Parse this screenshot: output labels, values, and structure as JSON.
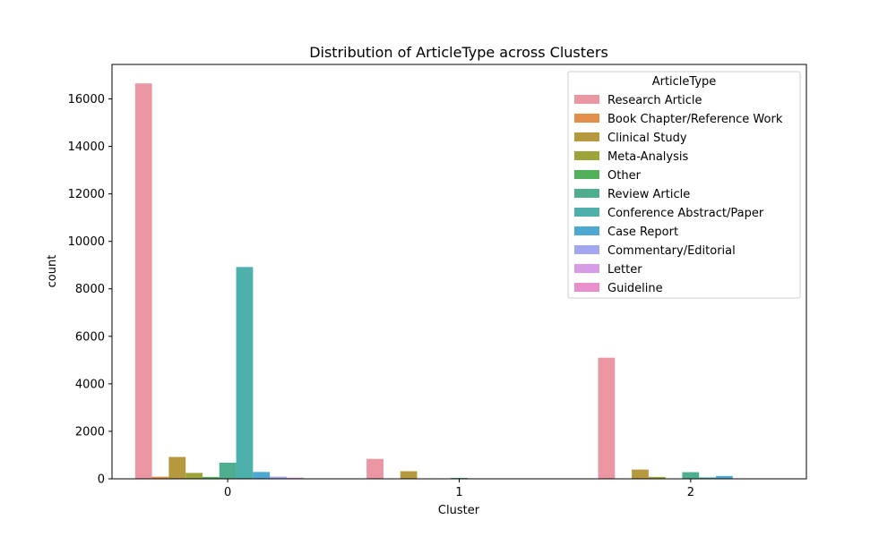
{
  "chart_data": {
    "type": "bar",
    "title": "Distribution of ArticleType across Clusters",
    "xlabel": "Cluster",
    "ylabel": "count",
    "categories": [
      "0",
      "1",
      "2"
    ],
    "ylim": [
      0,
      17450
    ],
    "yticks": [
      "0",
      "2000",
      "4000",
      "6000",
      "8000",
      "10000",
      "12000",
      "14000",
      "16000"
    ],
    "grid": false,
    "legend": {
      "title": "ArticleType",
      "placement": "top-right"
    },
    "series": [
      {
        "name": "Research Article",
        "color": "#ea96a3",
        "values": [
          16650,
          840,
          5100
        ]
      },
      {
        "name": "Book Chapter/Reference Work",
        "color": "#e38f49",
        "values": [
          90,
          0,
          0
        ]
      },
      {
        "name": "Clinical Study",
        "color": "#b6993e",
        "values": [
          920,
          320,
          390
        ]
      },
      {
        "name": "Meta-Analysis",
        "color": "#9da43a",
        "values": [
          250,
          10,
          80
        ]
      },
      {
        "name": "Other",
        "color": "#52b05b",
        "values": [
          80,
          5,
          10
        ]
      },
      {
        "name": "Review Article",
        "color": "#4eae8f",
        "values": [
          680,
          40,
          280
        ]
      },
      {
        "name": "Conference Abstract/Paper",
        "color": "#4eb0aa",
        "values": [
          8920,
          15,
          60
        ]
      },
      {
        "name": "Case Report",
        "color": "#4ea9d2",
        "values": [
          290,
          5,
          120
        ]
      },
      {
        "name": "Commentary/Editorial",
        "color": "#a3a7ef",
        "values": [
          90,
          0,
          5
        ]
      },
      {
        "name": "Letter",
        "color": "#d89be6",
        "values": [
          50,
          0,
          0
        ]
      },
      {
        "name": "Guideline",
        "color": "#e98fcb",
        "values": [
          20,
          0,
          0
        ]
      }
    ]
  }
}
